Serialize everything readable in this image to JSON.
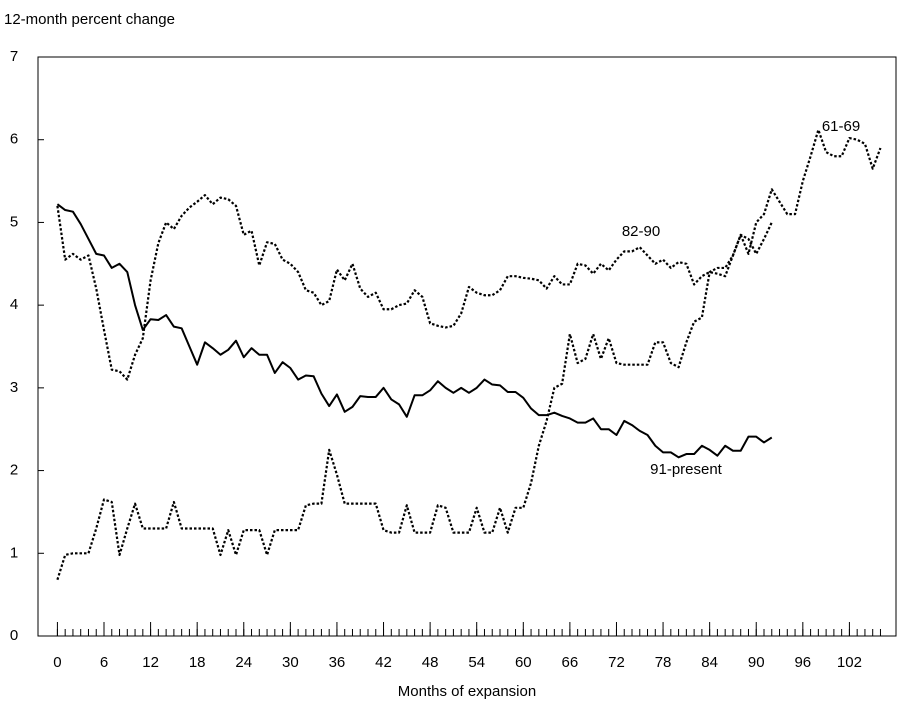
{
  "chart_data": {
    "type": "line",
    "y_label": "12-month percent change",
    "x_label": "Months of expansion",
    "x": [
      0,
      1,
      2,
      3,
      4,
      5,
      6,
      7,
      8,
      9,
      10,
      11,
      12,
      13,
      14,
      15,
      16,
      17,
      18,
      19,
      20,
      21,
      22,
      23,
      24,
      25,
      26,
      27,
      28,
      29,
      30,
      31,
      32,
      33,
      34,
      35,
      36,
      37,
      38,
      39,
      40,
      41,
      42,
      43,
      44,
      45,
      46,
      47,
      48,
      49,
      50,
      51,
      52,
      53,
      54,
      55,
      56,
      57,
      58,
      59,
      60,
      61,
      62,
      63,
      64,
      65,
      66,
      67,
      68,
      69,
      70,
      71,
      72,
      73,
      74,
      75,
      76,
      77,
      78,
      79,
      80,
      81,
      82,
      83,
      84,
      85,
      86,
      87,
      88,
      89,
      90,
      91,
      92,
      93,
      94,
      95,
      96,
      97,
      98,
      99,
      100,
      101,
      102,
      103,
      104,
      105,
      106
    ],
    "series": [
      {
        "name": "91-present",
        "color": "#000000",
        "style": "solid",
        "values": [
          5.22,
          5.15,
          5.13,
          4.98,
          4.8,
          4.62,
          4.6,
          4.45,
          4.5,
          4.4,
          4.0,
          3.7,
          3.83,
          3.82,
          3.88,
          3.74,
          3.72,
          3.5,
          3.28,
          3.55,
          3.48,
          3.4,
          3.46,
          3.57,
          3.37,
          3.48,
          3.4,
          3.4,
          3.18,
          3.31,
          3.24,
          3.1,
          3.15,
          3.14,
          2.93,
          2.78,
          2.92,
          2.71,
          2.77,
          2.9,
          2.89,
          2.89,
          3.0,
          2.86,
          2.8,
          2.65,
          2.91,
          2.91,
          2.97,
          3.08,
          3.0,
          2.94,
          3.0,
          2.94,
          3.0,
          3.1,
          3.04,
          3.03,
          2.95,
          2.95,
          2.88,
          2.75,
          2.67,
          2.67,
          2.7,
          2.66,
          2.63,
          2.58,
          2.58,
          2.63,
          2.5,
          2.5,
          2.43,
          2.6,
          2.55,
          2.48,
          2.43,
          2.3,
          2.22,
          2.22,
          2.16,
          2.2,
          2.2,
          2.3,
          2.25,
          2.18,
          2.3,
          2.24,
          2.24,
          2.41,
          2.41,
          2.34,
          2.4,
          null,
          null,
          null,
          null,
          null,
          null,
          null,
          null,
          null,
          null,
          null,
          null,
          null,
          null
        ]
      },
      {
        "name": "82-90",
        "color": "#000000",
        "style": "dotted",
        "values": [
          5.2,
          4.55,
          4.62,
          4.55,
          4.6,
          4.2,
          3.7,
          3.22,
          3.2,
          3.1,
          3.4,
          3.6,
          4.3,
          4.75,
          5.0,
          4.92,
          5.08,
          5.18,
          5.25,
          5.33,
          5.22,
          5.3,
          5.28,
          5.2,
          4.85,
          4.9,
          4.48,
          4.76,
          4.74,
          4.55,
          4.5,
          4.4,
          4.18,
          4.15,
          4.0,
          4.05,
          4.43,
          4.3,
          4.5,
          4.2,
          4.1,
          4.15,
          3.95,
          3.95,
          4.0,
          4.02,
          4.18,
          4.1,
          3.78,
          3.75,
          3.73,
          3.75,
          3.9,
          4.22,
          4.15,
          4.12,
          4.12,
          4.18,
          4.35,
          4.35,
          4.33,
          4.32,
          4.3,
          4.2,
          4.35,
          4.25,
          4.25,
          4.5,
          4.48,
          4.38,
          4.5,
          4.42,
          4.55,
          4.65,
          4.65,
          4.7,
          4.6,
          4.5,
          4.55,
          4.45,
          4.52,
          4.5,
          4.25,
          4.35,
          4.4,
          4.38,
          4.35,
          4.6,
          4.85,
          4.8,
          4.62,
          4.8,
          5.0,
          null,
          null,
          null,
          null,
          null,
          null,
          null,
          null,
          null,
          null,
          null,
          null,
          null,
          null
        ]
      },
      {
        "name": "61-69",
        "color": "#000000",
        "style": "dotted",
        "values": [
          0.68,
          0.98,
          1.0,
          1.0,
          1.0,
          1.3,
          1.65,
          1.62,
          0.98,
          1.3,
          1.6,
          1.3,
          1.3,
          1.3,
          1.3,
          1.62,
          1.3,
          1.3,
          1.3,
          1.3,
          1.3,
          0.98,
          1.28,
          0.98,
          1.28,
          1.28,
          1.28,
          0.98,
          1.28,
          1.28,
          1.28,
          1.28,
          1.58,
          1.6,
          1.6,
          2.25,
          1.95,
          1.6,
          1.6,
          1.6,
          1.6,
          1.6,
          1.28,
          1.25,
          1.25,
          1.58,
          1.25,
          1.25,
          1.25,
          1.58,
          1.55,
          1.25,
          1.25,
          1.25,
          1.55,
          1.25,
          1.25,
          1.55,
          1.25,
          1.55,
          1.55,
          1.85,
          2.3,
          2.6,
          3.0,
          3.05,
          3.65,
          3.3,
          3.35,
          3.65,
          3.35,
          3.6,
          3.3,
          3.28,
          3.28,
          3.28,
          3.28,
          3.55,
          3.55,
          3.3,
          3.25,
          3.55,
          3.8,
          3.85,
          4.4,
          4.45,
          4.45,
          4.6,
          4.85,
          4.62,
          5.0,
          5.1,
          5.4,
          5.25,
          5.1,
          5.1,
          5.5,
          5.8,
          6.12,
          5.85,
          5.8,
          5.8,
          6.02,
          6.0,
          5.95,
          5.65,
          5.9
        ]
      }
    ],
    "xlim": [
      -2.5,
      108
    ],
    "xticks": [
      0,
      6,
      12,
      18,
      24,
      30,
      36,
      42,
      48,
      54,
      60,
      66,
      72,
      78,
      84,
      90,
      96,
      102
    ],
    "ylim": [
      0,
      7
    ],
    "yticks": [
      0,
      1,
      2,
      3,
      4,
      5,
      6,
      7
    ],
    "grid": false
  }
}
